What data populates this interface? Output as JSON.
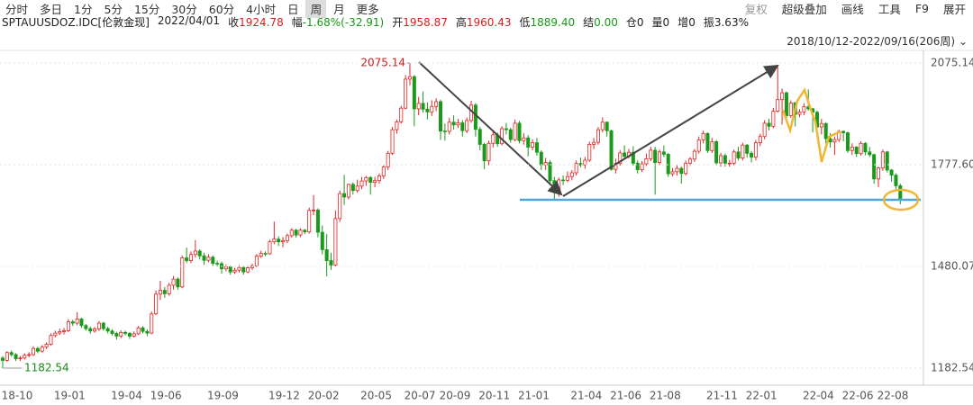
{
  "toolbar": {
    "tabs": [
      "分时",
      "多日",
      "1分",
      "5分",
      "15分",
      "30分",
      "60分",
      "4小时",
      "日",
      "周",
      "月",
      "更多"
    ],
    "selected": 9,
    "tools": [
      "复权",
      "超级叠加",
      "画线",
      "工具",
      "F9",
      "展开"
    ]
  },
  "info": [
    {
      "label": "SPTAUUSDOZ.IDC[伦敦金现]",
      "value": "",
      "color": "#222"
    },
    {
      "label": "2022/04/01",
      "value": "",
      "color": "#222"
    },
    {
      "label": "收",
      "value": "1924.78",
      "color": "#d42020"
    },
    {
      "label": "幅",
      "value": "-1.68%(-32.91)",
      "color": "#159a15"
    },
    {
      "label": "开",
      "value": "1958.87",
      "color": "#d42020"
    },
    {
      "label": "高",
      "value": "1960.43",
      "color": "#d42020"
    },
    {
      "label": "低",
      "value": "1889.40",
      "color": "#159a15"
    },
    {
      "label": "结",
      "value": "0.00",
      "color": "#159a15"
    },
    {
      "label": "仓",
      "value": "0",
      "color": "#222"
    },
    {
      "label": "量",
      "value": "0",
      "color": "#222"
    },
    {
      "label": "增",
      "value": "0",
      "color": "#222"
    },
    {
      "label": "振",
      "value": "3.63%",
      "color": "#222"
    }
  ],
  "range": "2018/10/12-2022/09/16(206周)",
  "chart_data": {
    "type": "candlestick",
    "up_color": "#e02525",
    "down_color": "#1a9a1a",
    "ylim": [
      1182.54,
      2075.14
    ],
    "yticks": [
      1182.54,
      1480.07,
      {
        "value": 1777.6,
        "label": "1777.60"
      },
      2075.14
    ],
    "grid": true,
    "categories": [
      "18-10",
      null,
      null,
      null,
      null,
      null,
      null,
      null,
      null,
      null,
      null,
      null,
      "19-01",
      null,
      null,
      null,
      null,
      null,
      null,
      null,
      null,
      null,
      null,
      null,
      null,
      "19-04",
      null,
      null,
      null,
      null,
      null,
      null,
      null,
      null,
      "19-06",
      null,
      null,
      null,
      null,
      null,
      null,
      null,
      null,
      null,
      null,
      null,
      null,
      "19-09",
      null,
      null,
      null,
      null,
      null,
      null,
      null,
      null,
      null,
      null,
      null,
      null,
      null,
      "19-12",
      null,
      null,
      null,
      null,
      null,
      null,
      null,
      null,
      "20-02",
      null,
      null,
      null,
      null,
      null,
      null,
      null,
      null,
      null,
      null,
      null,
      "20-05",
      null,
      null,
      null,
      null,
      null,
      null,
      null,
      null,
      null,
      "20-07",
      null,
      null,
      null,
      null,
      null,
      null,
      null,
      "20-09",
      null,
      null,
      null,
      null,
      null,
      null,
      null,
      null,
      "20-11",
      null,
      null,
      null,
      null,
      null,
      null,
      null,
      null,
      "21-01",
      null,
      null,
      null,
      null,
      null,
      null,
      null,
      null,
      null,
      null,
      null,
      "21-04",
      null,
      null,
      null,
      null,
      null,
      null,
      null,
      null,
      "21-06",
      null,
      null,
      null,
      null,
      null,
      null,
      null,
      null,
      "21-08",
      null,
      null,
      null,
      null,
      null,
      null,
      null,
      null,
      null,
      null,
      null,
      null,
      "21-11",
      null,
      null,
      null,
      null,
      null,
      null,
      null,
      null,
      "22-01",
      null,
      null,
      null,
      null,
      null,
      null,
      null,
      null,
      null,
      null,
      null,
      null,
      "22-04",
      null,
      null,
      null,
      null,
      null,
      null,
      null,
      null,
      "22-06",
      null,
      null,
      null,
      null,
      null,
      null,
      null,
      "22-08",
      null,
      null,
      null,
      null,
      null
    ],
    "candles": [
      [
        1212,
        1218,
        1182.54,
        1205
      ],
      [
        1205,
        1232,
        1201,
        1228
      ],
      [
        1228,
        1234,
        1216,
        1222
      ],
      [
        1222,
        1226,
        1204,
        1210
      ],
      [
        1210,
        1218,
        1203,
        1212
      ],
      [
        1212,
        1226,
        1208,
        1220
      ],
      [
        1220,
        1229,
        1214,
        1222
      ],
      [
        1222,
        1246,
        1218,
        1240
      ],
      [
        1240,
        1245,
        1226,
        1232
      ],
      [
        1232,
        1250,
        1228,
        1244
      ],
      [
        1244,
        1258,
        1238,
        1252
      ],
      [
        1252,
        1284,
        1248,
        1278
      ],
      [
        1278,
        1292,
        1272,
        1285
      ],
      [
        1285,
        1298,
        1279,
        1289
      ],
      [
        1289,
        1300,
        1281,
        1292
      ],
      [
        1292,
        1326,
        1288,
        1318
      ],
      [
        1318,
        1324,
        1306,
        1314
      ],
      [
        1314,
        1346,
        1308,
        1326
      ],
      [
        1326,
        1330,
        1300,
        1307
      ],
      [
        1307,
        1312,
        1292,
        1298
      ],
      [
        1298,
        1304,
        1283,
        1291
      ],
      [
        1291,
        1303,
        1286,
        1297
      ],
      [
        1297,
        1320,
        1291,
        1314
      ],
      [
        1314,
        1318,
        1292,
        1298
      ],
      [
        1298,
        1304,
        1284,
        1291
      ],
      [
        1291,
        1296,
        1278,
        1284
      ],
      [
        1284,
        1289,
        1266,
        1276
      ],
      [
        1276,
        1293,
        1270,
        1287
      ],
      [
        1287,
        1292,
        1278,
        1284
      ],
      [
        1284,
        1288,
        1268,
        1276
      ],
      [
        1276,
        1290,
        1272,
        1283
      ],
      [
        1283,
        1306,
        1279,
        1300
      ],
      [
        1300,
        1305,
        1284,
        1290
      ],
      [
        1290,
        1296,
        1276,
        1285
      ],
      [
        1285,
        1348,
        1282,
        1341
      ],
      [
        1341,
        1410,
        1338,
        1399
      ],
      [
        1399,
        1438,
        1382,
        1410
      ],
      [
        1410,
        1420,
        1388,
        1400
      ],
      [
        1400,
        1432,
        1394,
        1425
      ],
      [
        1425,
        1452,
        1412,
        1443
      ],
      [
        1443,
        1448,
        1412,
        1420
      ],
      [
        1420,
        1512,
        1416,
        1505
      ],
      [
        1505,
        1535,
        1490,
        1497
      ],
      [
        1497,
        1524,
        1490,
        1515
      ],
      [
        1515,
        1557,
        1506,
        1525
      ],
      [
        1525,
        1530,
        1500,
        1511
      ],
      [
        1511,
        1520,
        1485,
        1498
      ],
      [
        1498,
        1516,
        1492,
        1507
      ],
      [
        1507,
        1512,
        1482,
        1489
      ],
      [
        1489,
        1497,
        1480,
        1488
      ],
      [
        1488,
        1494,
        1459,
        1473
      ],
      [
        1473,
        1486,
        1466,
        1479
      ],
      [
        1479,
        1483,
        1456,
        1464
      ],
      [
        1464,
        1476,
        1458,
        1469
      ],
      [
        1469,
        1484,
        1462,
        1477
      ],
      [
        1477,
        1482,
        1456,
        1464
      ],
      [
        1464,
        1482,
        1460,
        1476
      ],
      [
        1476,
        1488,
        1470,
        1481
      ],
      [
        1481,
        1516,
        1478,
        1510
      ],
      [
        1510,
        1526,
        1505,
        1518
      ],
      [
        1518,
        1524,
        1510,
        1517
      ],
      [
        1517,
        1558,
        1514,
        1552
      ],
      [
        1552,
        1611,
        1545,
        1560
      ],
      [
        1560,
        1568,
        1540,
        1552
      ],
      [
        1552,
        1566,
        1536,
        1555
      ],
      [
        1555,
        1576,
        1548,
        1570
      ],
      [
        1570,
        1592,
        1564,
        1586
      ],
      [
        1586,
        1590,
        1564,
        1572
      ],
      [
        1572,
        1592,
        1566,
        1586
      ],
      [
        1586,
        1590,
        1575,
        1581
      ],
      [
        1581,
        1652,
        1576,
        1644
      ],
      [
        1644,
        1689,
        1630,
        1645
      ],
      [
        1645,
        1650,
        1565,
        1580
      ],
      [
        1580,
        1600,
        1515,
        1529
      ],
      [
        1529,
        1575,
        1451,
        1497
      ],
      [
        1497,
        1520,
        1470,
        1484
      ],
      [
        1484,
        1644,
        1480,
        1620
      ],
      [
        1620,
        1702,
        1610,
        1693
      ],
      [
        1693,
        1748,
        1660,
        1683
      ],
      [
        1683,
        1722,
        1676,
        1720
      ],
      [
        1720,
        1726,
        1690,
        1702
      ],
      [
        1702,
        1734,
        1696,
        1715
      ],
      [
        1715,
        1742,
        1706,
        1730
      ],
      [
        1730,
        1745,
        1716,
        1740
      ],
      [
        1740,
        1744,
        1690,
        1726
      ],
      [
        1726,
        1742,
        1712,
        1731
      ],
      [
        1731,
        1752,
        1722,
        1745
      ],
      [
        1745,
        1776,
        1736,
        1771
      ],
      [
        1771,
        1818,
        1762,
        1811
      ],
      [
        1811,
        1888,
        1806,
        1880
      ],
      [
        1880,
        1910,
        1868,
        1903
      ],
      [
        1903,
        1950,
        1898,
        1943
      ],
      [
        1943,
        2040,
        1940,
        2028
      ],
      [
        2028,
        2075.14,
        2010,
        2035
      ],
      [
        2035,
        2040,
        1890,
        1941
      ],
      [
        1941,
        1976,
        1922,
        1957
      ],
      [
        1957,
        1992,
        1930,
        1940
      ],
      [
        1940,
        1960,
        1910,
        1932
      ],
      [
        1932,
        1966,
        1920,
        1948
      ],
      [
        1948,
        1972,
        1934,
        1962
      ],
      [
        1962,
        1968,
        1850,
        1876
      ],
      [
        1876,
        1898,
        1848,
        1875
      ],
      [
        1875,
        1915,
        1866,
        1902
      ],
      [
        1902,
        1922,
        1880,
        1894
      ],
      [
        1894,
        1912,
        1885,
        1900
      ],
      [
        1900,
        1908,
        1860,
        1877
      ],
      [
        1877,
        1916,
        1870,
        1907
      ],
      [
        1907,
        1965,
        1900,
        1952
      ],
      [
        1952,
        1958,
        1860,
        1881
      ],
      [
        1881,
        1888,
        1820,
        1837
      ],
      [
        1837,
        1842,
        1765,
        1789
      ],
      [
        1789,
        1848,
        1776,
        1840
      ],
      [
        1840,
        1876,
        1828,
        1865
      ],
      [
        1865,
        1872,
        1830,
        1839
      ],
      [
        1839,
        1890,
        1834,
        1883
      ],
      [
        1883,
        1900,
        1866,
        1880
      ],
      [
        1880,
        1886,
        1842,
        1851
      ],
      [
        1851,
        1910,
        1846,
        1899
      ],
      [
        1899,
        1906,
        1840,
        1848
      ],
      [
        1848,
        1870,
        1836,
        1856
      ],
      [
        1856,
        1864,
        1802,
        1829
      ],
      [
        1829,
        1852,
        1820,
        1842
      ],
      [
        1842,
        1856,
        1804,
        1814
      ],
      [
        1814,
        1820,
        1762,
        1777
      ],
      [
        1777,
        1797,
        1762,
        1784
      ],
      [
        1784,
        1790,
        1718,
        1731
      ],
      [
        1731,
        1742,
        1677,
        1696
      ],
      [
        1696,
        1740,
        1684,
        1733
      ],
      [
        1733,
        1746,
        1718,
        1732
      ],
      [
        1732,
        1758,
        1726,
        1743
      ],
      [
        1743,
        1762,
        1732,
        1754
      ],
      [
        1754,
        1790,
        1746,
        1781
      ],
      [
        1781,
        1798,
        1770,
        1777
      ],
      [
        1777,
        1800,
        1766,
        1791
      ],
      [
        1791,
        1845,
        1786,
        1837
      ],
      [
        1837,
        1856,
        1823,
        1843
      ],
      [
        1843,
        1888,
        1836,
        1880
      ],
      [
        1880,
        1916,
        1872,
        1902
      ],
      [
        1902,
        1904,
        1860,
        1877
      ],
      [
        1877,
        1880,
        1760,
        1764
      ],
      [
        1764,
        1795,
        1752,
        1781
      ],
      [
        1781,
        1820,
        1775,
        1812
      ],
      [
        1812,
        1834,
        1794,
        1802
      ],
      [
        1802,
        1824,
        1796,
        1814
      ],
      [
        1814,
        1832,
        1775,
        1782
      ],
      [
        1782,
        1790,
        1752,
        1763
      ],
      [
        1763,
        1788,
        1756,
        1780
      ],
      [
        1780,
        1810,
        1774,
        1795
      ],
      [
        1795,
        1830,
        1788,
        1820
      ],
      [
        1820,
        1830,
        1690,
        1784
      ],
      [
        1784,
        1822,
        1776,
        1815
      ],
      [
        1815,
        1834,
        1800,
        1808
      ],
      [
        1808,
        1812,
        1742,
        1751
      ],
      [
        1751,
        1768,
        1744,
        1757
      ],
      [
        1757,
        1776,
        1746,
        1767
      ],
      [
        1767,
        1772,
        1722,
        1752
      ],
      [
        1752,
        1790,
        1746,
        1782
      ],
      [
        1782,
        1800,
        1774,
        1794
      ],
      [
        1794,
        1824,
        1786,
        1817
      ],
      [
        1817,
        1860,
        1810,
        1850
      ],
      [
        1850,
        1877,
        1840,
        1869
      ],
      [
        1869,
        1872,
        1812,
        1819
      ],
      [
        1819,
        1856,
        1812,
        1845
      ],
      [
        1845,
        1850,
        1776,
        1783
      ],
      [
        1783,
        1812,
        1772,
        1804
      ],
      [
        1804,
        1810,
        1772,
        1782
      ],
      [
        1782,
        1792,
        1772,
        1782
      ],
      [
        1782,
        1822,
        1776,
        1815
      ],
      [
        1815,
        1830,
        1790,
        1797
      ],
      [
        1797,
        1842,
        1790,
        1835
      ],
      [
        1835,
        1838,
        1798,
        1811
      ],
      [
        1811,
        1818,
        1784,
        1800
      ],
      [
        1800,
        1850,
        1790,
        1842
      ],
      [
        1842,
        1868,
        1832,
        1860
      ],
      [
        1860,
        1908,
        1852,
        1899
      ],
      [
        1899,
        1912,
        1878,
        1890
      ],
      [
        1890,
        1944,
        1884,
        1934
      ],
      [
        1934,
        2070,
        1930,
        1968
      ],
      [
        1968,
        2000,
        1895,
        1988
      ],
      [
        1988,
        1992,
        1900,
        1921
      ],
      [
        1921,
        1966,
        1915,
        1958
      ],
      [
        1958.87,
        1960.43,
        1889.4,
        1924.78
      ],
      [
        1925,
        1940,
        1916,
        1932
      ],
      [
        1932,
        1958,
        1922,
        1947
      ],
      [
        1947,
        1998,
        1936,
        1941
      ],
      [
        1941,
        1944,
        1872,
        1931
      ],
      [
        1931,
        1936,
        1872,
        1888
      ],
      [
        1888,
        1912,
        1866,
        1898
      ],
      [
        1898,
        1902,
        1840,
        1854
      ],
      [
        1854,
        1870,
        1828,
        1844
      ],
      [
        1844,
        1860,
        1806,
        1851
      ],
      [
        1851,
        1880,
        1844,
        1875
      ],
      [
        1875,
        1878,
        1846,
        1871
      ],
      [
        1871,
        1874,
        1812,
        1819
      ],
      [
        1819,
        1840,
        1806,
        1829
      ],
      [
        1829,
        1832,
        1800,
        1810
      ],
      [
        1810,
        1846,
        1804,
        1840
      ],
      [
        1840,
        1844,
        1805,
        1815
      ],
      [
        1815,
        1830,
        1800,
        1807
      ],
      [
        1807,
        1810,
        1722,
        1736
      ],
      [
        1736,
        1772,
        1712,
        1768
      ],
      [
        1768,
        1822,
        1760,
        1815
      ],
      [
        1815,
        1818,
        1755,
        1762
      ],
      [
        1762,
        1765,
        1728,
        1747
      ],
      [
        1747,
        1752,
        1706,
        1716
      ],
      [
        1716,
        1722,
        1662,
        1675
      ]
    ]
  }
}
